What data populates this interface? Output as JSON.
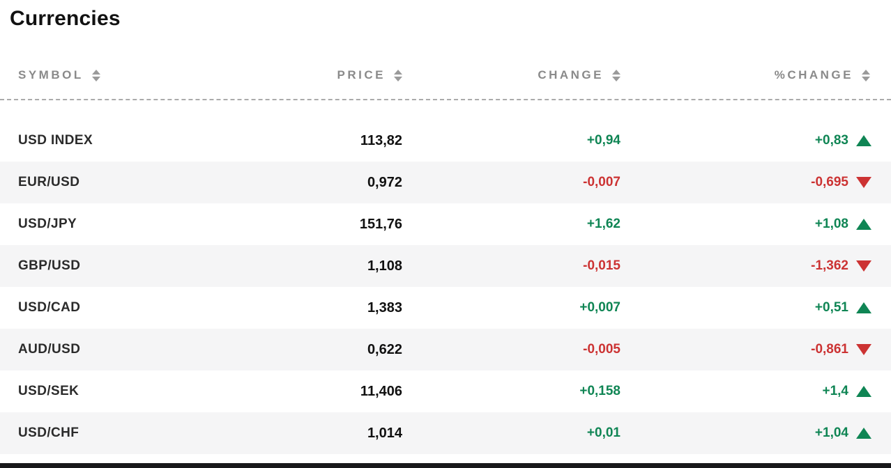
{
  "page": {
    "title": "Currencies"
  },
  "colors": {
    "positive": "#0f8554",
    "negative": "#cc3333"
  },
  "table": {
    "columns": [
      {
        "key": "symbol",
        "label": "SYMBOL"
      },
      {
        "key": "price",
        "label": "PRICE"
      },
      {
        "key": "change",
        "label": "CHANGE"
      },
      {
        "key": "pct_change",
        "label": "%CHANGE"
      }
    ],
    "rows": [
      {
        "symbol": "USD INDEX",
        "price": "113,82",
        "change": "+0,94",
        "pct_change": "+0,83",
        "direction": "up"
      },
      {
        "symbol": "EUR/USD",
        "price": "0,972",
        "change": "-0,007",
        "pct_change": "-0,695",
        "direction": "down"
      },
      {
        "symbol": "USD/JPY",
        "price": "151,76",
        "change": "+1,62",
        "pct_change": "+1,08",
        "direction": "up"
      },
      {
        "symbol": "GBP/USD",
        "price": "1,108",
        "change": "-0,015",
        "pct_change": "-1,362",
        "direction": "down"
      },
      {
        "symbol": "USD/CAD",
        "price": "1,383",
        "change": "+0,007",
        "pct_change": "+0,51",
        "direction": "up"
      },
      {
        "symbol": "AUD/USD",
        "price": "0,622",
        "change": "-0,005",
        "pct_change": "-0,861",
        "direction": "down"
      },
      {
        "symbol": "USD/SEK",
        "price": "11,406",
        "change": "+0,158",
        "pct_change": "+1,4",
        "direction": "up"
      },
      {
        "symbol": "USD/CHF",
        "price": "1,014",
        "change": "+0,01",
        "pct_change": "+1,04",
        "direction": "up"
      }
    ]
  }
}
